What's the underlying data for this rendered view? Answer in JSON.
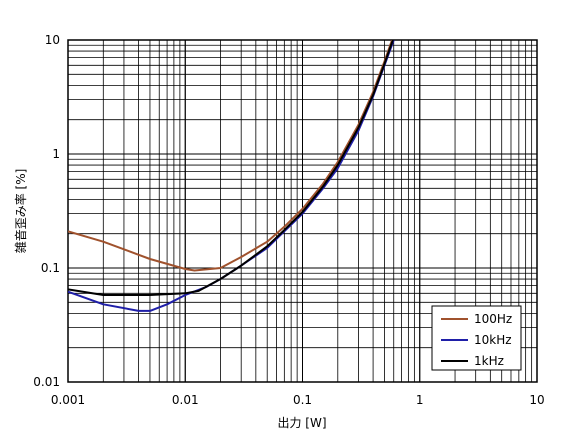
{
  "chart_data": {
    "type": "line",
    "xlabel": "出力 [W]",
    "ylabel": "雑音歪み率 [%]",
    "xscale": "log",
    "yscale": "log",
    "xlim": [
      0.001,
      10
    ],
    "ylim": [
      0.01,
      10
    ],
    "xticks": [
      "0.001",
      "0.01",
      "0.1",
      "1",
      "10"
    ],
    "yticks": [
      "0.01",
      "0.1",
      "1",
      "10"
    ],
    "grid": true,
    "legend_position": "bottom-right",
    "series": [
      {
        "name": "100Hz",
        "color": "#a0522d",
        "x": [
          0.001,
          0.002,
          0.005,
          0.01,
          0.012,
          0.02,
          0.03,
          0.05,
          0.07,
          0.1,
          0.15,
          0.2,
          0.3,
          0.4,
          0.5,
          0.6
        ],
        "y": [
          0.21,
          0.17,
          0.12,
          0.098,
          0.095,
          0.1,
          0.125,
          0.17,
          0.23,
          0.33,
          0.55,
          0.85,
          1.8,
          3.5,
          6.5,
          11
        ]
      },
      {
        "name": "10kHz",
        "color": "#1f1fa8",
        "x": [
          0.001,
          0.002,
          0.004,
          0.005,
          0.007,
          0.01,
          0.015,
          0.02,
          0.03,
          0.05,
          0.07,
          0.1,
          0.15,
          0.2,
          0.3,
          0.4,
          0.5,
          0.6
        ],
        "y": [
          0.062,
          0.048,
          0.042,
          0.042,
          0.048,
          0.058,
          0.068,
          0.08,
          0.105,
          0.15,
          0.21,
          0.3,
          0.5,
          0.75,
          1.6,
          3.2,
          6,
          10
        ]
      },
      {
        "name": "1kHz",
        "color": "#000000",
        "x": [
          0.001,
          0.002,
          0.005,
          0.01,
          0.013,
          0.02,
          0.03,
          0.05,
          0.07,
          0.1,
          0.15,
          0.2,
          0.3,
          0.4,
          0.5,
          0.6
        ],
        "y": [
          0.065,
          0.058,
          0.058,
          0.06,
          0.063,
          0.08,
          0.105,
          0.155,
          0.215,
          0.31,
          0.52,
          0.8,
          1.7,
          3.3,
          6.2,
          10.5
        ]
      }
    ]
  }
}
